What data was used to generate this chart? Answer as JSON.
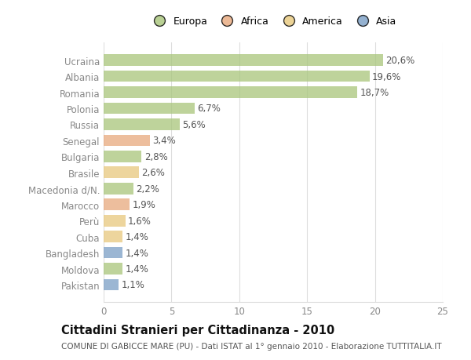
{
  "title": "Cittadini Stranieri per Cittadinanza - 2010",
  "subtitle": "COMUNE DI GABICCE MARE (PU) - Dati ISTAT al 1° gennaio 2010 - Elaborazione TUTTITALIA.IT",
  "categories": [
    "Ucraina",
    "Albania",
    "Romania",
    "Polonia",
    "Russia",
    "Senegal",
    "Bulgaria",
    "Brasile",
    "Macedonia d/N.",
    "Marocco",
    "Perù",
    "Cuba",
    "Bangladesh",
    "Moldova",
    "Pakistan"
  ],
  "values": [
    20.6,
    19.6,
    18.7,
    6.7,
    5.6,
    3.4,
    2.8,
    2.6,
    2.2,
    1.9,
    1.6,
    1.4,
    1.4,
    1.4,
    1.1
  ],
  "labels": [
    "20,6%",
    "19,6%",
    "18,7%",
    "6,7%",
    "5,6%",
    "3,4%",
    "2,8%",
    "2,6%",
    "2,2%",
    "1,9%",
    "1,6%",
    "1,4%",
    "1,4%",
    "1,4%",
    "1,1%"
  ],
  "continents": [
    "Europa",
    "Europa",
    "Europa",
    "Europa",
    "Europa",
    "Africa",
    "Europa",
    "America",
    "Europa",
    "Africa",
    "America",
    "America",
    "Asia",
    "Europa",
    "Asia"
  ],
  "colors": {
    "Europa": "#a8c57a",
    "Africa": "#e8a87c",
    "America": "#e8c87c",
    "Asia": "#7a9ec5"
  },
  "xlim": [
    0,
    25
  ],
  "xticks": [
    0,
    5,
    10,
    15,
    20,
    25
  ],
  "background_color": "#ffffff",
  "grid_color": "#dddddd",
  "bar_height": 0.72,
  "title_fontsize": 10.5,
  "subtitle_fontsize": 7.5,
  "tick_fontsize": 8.5,
  "label_fontsize": 8.5,
  "legend_fontsize": 9
}
